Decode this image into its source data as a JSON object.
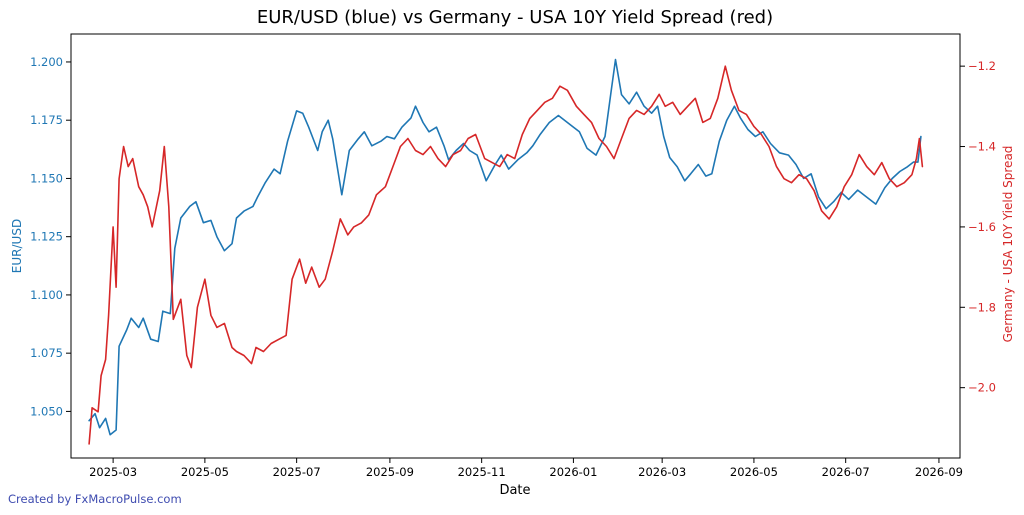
{
  "chart_data": {
    "type": "line",
    "title": "EUR/USD (blue) vs Germany - USA 10Y Yield Spread (red)",
    "xlabel": "Date",
    "ylabel_left": "EUR/USD",
    "ylabel_right": "Germany - USA 10Y Yield Spread",
    "x_ticks": [
      "2025-03",
      "2025-05",
      "2025-07",
      "2025-09",
      "2025-11",
      "2026-01",
      "2026-03",
      "2026-05",
      "2026-07",
      "2026-09"
    ],
    "y_left_ticks": [
      "1.050",
      "1.075",
      "1.100",
      "1.125",
      "1.150",
      "1.175",
      "1.200"
    ],
    "y_right_ticks": [
      "−2.0",
      "−1.8",
      "−1.6",
      "−1.4",
      "−1.2"
    ],
    "xlim": [
      "2025-02-01",
      "2026-09-15"
    ],
    "ylim_left": [
      1.03,
      1.212
    ],
    "ylim_right": [
      -2.175,
      -1.12
    ],
    "grid": false,
    "legend": "none",
    "series": [
      {
        "axis": "left",
        "color": "#1f77b4",
        "points": [
          [
            "2025-02-13",
            1.046
          ],
          [
            "2025-02-17",
            1.049
          ],
          [
            "2025-02-20",
            1.043
          ],
          [
            "2025-02-24",
            1.047
          ],
          [
            "2025-02-27",
            1.04
          ],
          [
            "2025-03-03",
            1.042
          ],
          [
            "2025-03-05",
            1.078
          ],
          [
            "2025-03-10",
            1.085
          ],
          [
            "2025-03-13",
            1.09
          ],
          [
            "2025-03-18",
            1.086
          ],
          [
            "2025-03-21",
            1.09
          ],
          [
            "2025-03-26",
            1.081
          ],
          [
            "2025-03-31",
            1.08
          ],
          [
            "2025-04-03",
            1.093
          ],
          [
            "2025-04-08",
            1.092
          ],
          [
            "2025-04-11",
            1.12
          ],
          [
            "2025-04-15",
            1.133
          ],
          [
            "2025-04-21",
            1.138
          ],
          [
            "2025-04-25",
            1.14
          ],
          [
            "2025-04-30",
            1.131
          ],
          [
            "2025-05-05",
            1.132
          ],
          [
            "2025-05-09",
            1.125
          ],
          [
            "2025-05-14",
            1.119
          ],
          [
            "2025-05-19",
            1.122
          ],
          [
            "2025-05-22",
            1.133
          ],
          [
            "2025-05-27",
            1.136
          ],
          [
            "2025-06-02",
            1.138
          ],
          [
            "2025-06-05",
            1.142
          ],
          [
            "2025-06-10",
            1.148
          ],
          [
            "2025-06-16",
            1.154
          ],
          [
            "2025-06-20",
            1.152
          ],
          [
            "2025-06-25",
            1.166
          ],
          [
            "2025-07-01",
            1.179
          ],
          [
            "2025-07-05",
            1.178
          ],
          [
            "2025-07-09",
            1.172
          ],
          [
            "2025-07-15",
            1.162
          ],
          [
            "2025-07-18",
            1.17
          ],
          [
            "2025-07-22",
            1.175
          ],
          [
            "2025-07-25",
            1.167
          ],
          [
            "2025-07-31",
            1.143
          ],
          [
            "2025-08-05",
            1.162
          ],
          [
            "2025-08-11",
            1.167
          ],
          [
            "2025-08-15",
            1.17
          ],
          [
            "2025-08-20",
            1.164
          ],
          [
            "2025-08-26",
            1.166
          ],
          [
            "2025-08-30",
            1.168
          ],
          [
            "2025-09-04",
            1.167
          ],
          [
            "2025-09-09",
            1.172
          ],
          [
            "2025-09-15",
            1.176
          ],
          [
            "2025-09-18",
            1.181
          ],
          [
            "2025-09-23",
            1.174
          ],
          [
            "2025-09-27",
            1.17
          ],
          [
            "2025-10-02",
            1.172
          ],
          [
            "2025-10-07",
            1.164
          ],
          [
            "2025-10-10",
            1.158
          ],
          [
            "2025-10-15",
            1.162
          ],
          [
            "2025-10-20",
            1.165
          ],
          [
            "2025-10-24",
            1.162
          ],
          [
            "2025-10-29",
            1.16
          ],
          [
            "2025-11-04",
            1.149
          ],
          [
            "2025-11-10",
            1.156
          ],
          [
            "2025-11-14",
            1.16
          ],
          [
            "2025-11-19",
            1.154
          ],
          [
            "2025-11-25",
            1.158
          ],
          [
            "2025-12-01",
            1.161
          ],
          [
            "2025-12-05",
            1.164
          ],
          [
            "2025-12-10",
            1.169
          ],
          [
            "2025-12-16",
            1.174
          ],
          [
            "2025-12-22",
            1.177
          ],
          [
            "2025-12-28",
            1.174
          ],
          [
            "2026-01-05",
            1.17
          ],
          [
            "2026-01-10",
            1.163
          ],
          [
            "2026-01-16",
            1.16
          ],
          [
            "2026-01-22",
            1.168
          ],
          [
            "2026-01-26",
            1.187
          ],
          [
            "2026-01-29",
            1.201
          ],
          [
            "2026-02-02",
            1.186
          ],
          [
            "2026-02-07",
            1.182
          ],
          [
            "2026-02-12",
            1.187
          ],
          [
            "2026-02-17",
            1.181
          ],
          [
            "2026-02-22",
            1.178
          ],
          [
            "2026-02-26",
            1.181
          ],
          [
            "2026-03-02",
            1.168
          ],
          [
            "2026-03-06",
            1.159
          ],
          [
            "2026-03-11",
            1.155
          ],
          [
            "2026-03-16",
            1.149
          ],
          [
            "2026-03-20",
            1.152
          ],
          [
            "2026-03-25",
            1.156
          ],
          [
            "2026-03-30",
            1.151
          ],
          [
            "2026-04-03",
            1.152
          ],
          [
            "2026-04-08",
            1.166
          ],
          [
            "2026-04-13",
            1.175
          ],
          [
            "2026-04-18",
            1.181
          ],
          [
            "2026-04-22",
            1.176
          ],
          [
            "2026-04-27",
            1.171
          ],
          [
            "2026-05-02",
            1.168
          ],
          [
            "2026-05-07",
            1.17
          ],
          [
            "2026-05-12",
            1.165
          ],
          [
            "2026-05-18",
            1.161
          ],
          [
            "2026-05-24",
            1.16
          ],
          [
            "2026-05-29",
            1.156
          ],
          [
            "2026-06-03",
            1.15
          ],
          [
            "2026-06-08",
            1.152
          ],
          [
            "2026-06-13",
            1.142
          ],
          [
            "2026-06-18",
            1.137
          ],
          [
            "2026-06-23",
            1.14
          ],
          [
            "2026-06-28",
            1.144
          ],
          [
            "2026-07-03",
            1.141
          ],
          [
            "2026-07-09",
            1.145
          ],
          [
            "2026-07-15",
            1.142
          ],
          [
            "2026-07-21",
            1.139
          ],
          [
            "2026-07-27",
            1.146
          ],
          [
            "2026-08-01",
            1.15
          ],
          [
            "2026-08-06",
            1.153
          ],
          [
            "2026-08-11",
            1.155
          ],
          [
            "2026-08-15",
            1.157
          ],
          [
            "2026-08-18",
            1.157
          ],
          [
            "2026-08-20",
            1.168
          ]
        ]
      },
      {
        "axis": "right",
        "color": "#d62728",
        "points": [
          [
            "2025-02-13",
            -2.14
          ],
          [
            "2025-02-15",
            -2.05
          ],
          [
            "2025-02-19",
            -2.06
          ],
          [
            "2025-02-21",
            -1.97
          ],
          [
            "2025-02-24",
            -1.93
          ],
          [
            "2025-02-26",
            -1.82
          ],
          [
            "2025-03-01",
            -1.6
          ],
          [
            "2025-03-03",
            -1.75
          ],
          [
            "2025-03-05",
            -1.48
          ],
          [
            "2025-03-08",
            -1.4
          ],
          [
            "2025-03-11",
            -1.45
          ],
          [
            "2025-03-14",
            -1.43
          ],
          [
            "2025-03-18",
            -1.5
          ],
          [
            "2025-03-21",
            -1.52
          ],
          [
            "2025-03-24",
            -1.55
          ],
          [
            "2025-03-27",
            -1.6
          ],
          [
            "2025-04-01",
            -1.51
          ],
          [
            "2025-04-04",
            -1.4
          ],
          [
            "2025-04-07",
            -1.55
          ],
          [
            "2025-04-10",
            -1.83
          ],
          [
            "2025-04-15",
            -1.78
          ],
          [
            "2025-04-19",
            -1.92
          ],
          [
            "2025-04-22",
            -1.95
          ],
          [
            "2025-04-26",
            -1.8
          ],
          [
            "2025-05-01",
            -1.73
          ],
          [
            "2025-05-05",
            -1.82
          ],
          [
            "2025-05-09",
            -1.85
          ],
          [
            "2025-05-14",
            -1.84
          ],
          [
            "2025-05-19",
            -1.9
          ],
          [
            "2025-05-22",
            -1.91
          ],
          [
            "2025-05-27",
            -1.92
          ],
          [
            "2025-06-01",
            -1.94
          ],
          [
            "2025-06-04",
            -1.9
          ],
          [
            "2025-06-09",
            -1.91
          ],
          [
            "2025-06-14",
            -1.89
          ],
          [
            "2025-06-19",
            -1.88
          ],
          [
            "2025-06-24",
            -1.87
          ],
          [
            "2025-06-28",
            -1.73
          ],
          [
            "2025-07-03",
            -1.68
          ],
          [
            "2025-07-07",
            -1.74
          ],
          [
            "2025-07-11",
            -1.7
          ],
          [
            "2025-07-16",
            -1.75
          ],
          [
            "2025-07-20",
            -1.73
          ],
          [
            "2025-07-25",
            -1.66
          ],
          [
            "2025-07-30",
            -1.58
          ],
          [
            "2025-08-04",
            -1.62
          ],
          [
            "2025-08-08",
            -1.6
          ],
          [
            "2025-08-13",
            -1.59
          ],
          [
            "2025-08-18",
            -1.57
          ],
          [
            "2025-08-23",
            -1.52
          ],
          [
            "2025-08-29",
            -1.5
          ],
          [
            "2025-09-03",
            -1.45
          ],
          [
            "2025-09-08",
            -1.4
          ],
          [
            "2025-09-13",
            -1.38
          ],
          [
            "2025-09-18",
            -1.41
          ],
          [
            "2025-09-23",
            -1.42
          ],
          [
            "2025-09-28",
            -1.4
          ],
          [
            "2025-10-03",
            -1.43
          ],
          [
            "2025-10-08",
            -1.45
          ],
          [
            "2025-10-13",
            -1.42
          ],
          [
            "2025-10-18",
            -1.41
          ],
          [
            "2025-10-23",
            -1.38
          ],
          [
            "2025-10-28",
            -1.37
          ],
          [
            "2025-11-03",
            -1.43
          ],
          [
            "2025-11-08",
            -1.44
          ],
          [
            "2025-11-13",
            -1.45
          ],
          [
            "2025-11-18",
            -1.42
          ],
          [
            "2025-11-23",
            -1.43
          ],
          [
            "2025-11-28",
            -1.37
          ],
          [
            "2025-12-03",
            -1.33
          ],
          [
            "2025-12-08",
            -1.31
          ],
          [
            "2025-12-13",
            -1.29
          ],
          [
            "2025-12-18",
            -1.28
          ],
          [
            "2025-12-23",
            -1.25
          ],
          [
            "2025-12-28",
            -1.26
          ],
          [
            "2026-01-03",
            -1.3
          ],
          [
            "2026-01-08",
            -1.32
          ],
          [
            "2026-01-13",
            -1.34
          ],
          [
            "2026-01-18",
            -1.38
          ],
          [
            "2026-01-23",
            -1.4
          ],
          [
            "2026-01-28",
            -1.43
          ],
          [
            "2026-02-02",
            -1.38
          ],
          [
            "2026-02-07",
            -1.33
          ],
          [
            "2026-02-12",
            -1.31
          ],
          [
            "2026-02-17",
            -1.32
          ],
          [
            "2026-02-22",
            -1.3
          ],
          [
            "2026-02-27",
            -1.27
          ],
          [
            "2026-03-03",
            -1.3
          ],
          [
            "2026-03-08",
            -1.29
          ],
          [
            "2026-03-13",
            -1.32
          ],
          [
            "2026-03-18",
            -1.3
          ],
          [
            "2026-03-23",
            -1.28
          ],
          [
            "2026-03-28",
            -1.34
          ],
          [
            "2026-04-02",
            -1.33
          ],
          [
            "2026-04-07",
            -1.28
          ],
          [
            "2026-04-12",
            -1.2
          ],
          [
            "2026-04-16",
            -1.26
          ],
          [
            "2026-04-21",
            -1.31
          ],
          [
            "2026-04-26",
            -1.32
          ],
          [
            "2026-05-01",
            -1.35
          ],
          [
            "2026-05-06",
            -1.37
          ],
          [
            "2026-05-11",
            -1.4
          ],
          [
            "2026-05-16",
            -1.45
          ],
          [
            "2026-05-21",
            -1.48
          ],
          [
            "2026-05-26",
            -1.49
          ],
          [
            "2026-05-31",
            -1.47
          ],
          [
            "2026-06-05",
            -1.48
          ],
          [
            "2026-06-10",
            -1.51
          ],
          [
            "2026-06-15",
            -1.56
          ],
          [
            "2026-06-20",
            -1.58
          ],
          [
            "2026-06-25",
            -1.55
          ],
          [
            "2026-06-30",
            -1.5
          ],
          [
            "2026-07-05",
            -1.47
          ],
          [
            "2026-07-10",
            -1.42
          ],
          [
            "2026-07-15",
            -1.45
          ],
          [
            "2026-07-20",
            -1.47
          ],
          [
            "2026-07-25",
            -1.44
          ],
          [
            "2026-07-30",
            -1.48
          ],
          [
            "2026-08-04",
            -1.5
          ],
          [
            "2026-08-09",
            -1.49
          ],
          [
            "2026-08-14",
            -1.47
          ],
          [
            "2026-08-17",
            -1.43
          ],
          [
            "2026-08-19",
            -1.38
          ],
          [
            "2026-08-21",
            -1.45
          ]
        ]
      }
    ]
  },
  "footer": {
    "credit": "Created by FxMacroPulse.com"
  }
}
